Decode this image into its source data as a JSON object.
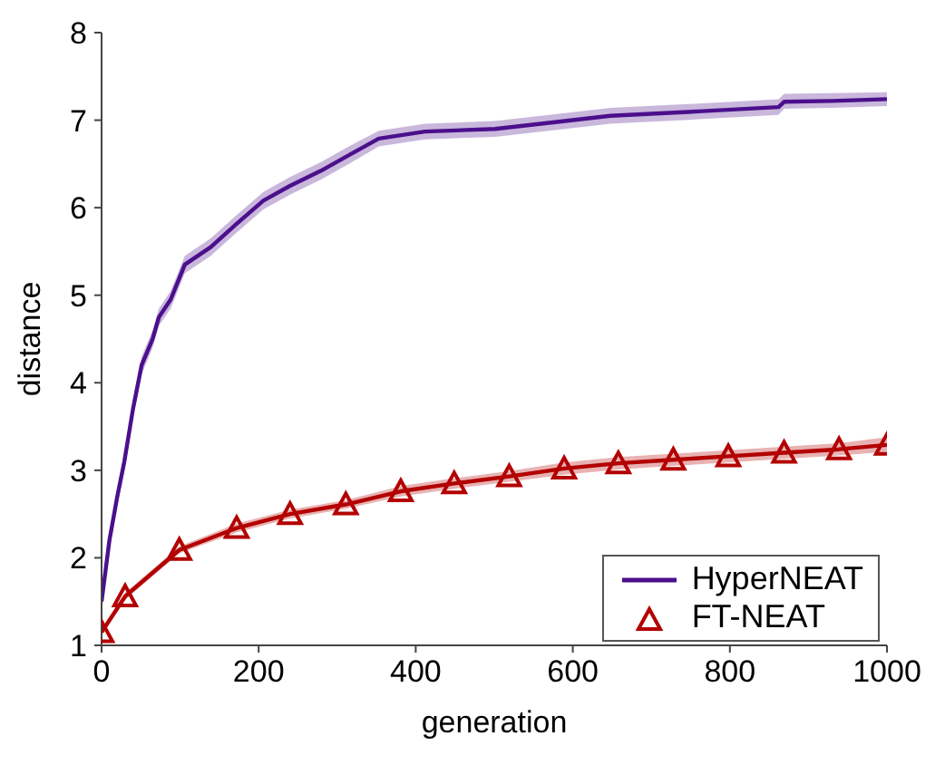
{
  "chart_data": {
    "type": "line",
    "xlabel": "generation",
    "ylabel": "distance",
    "xlim": [
      0,
      1000
    ],
    "xticks": [
      0,
      200,
      400,
      600,
      800,
      1000
    ],
    "ylim": [
      1,
      8
    ],
    "yticks": [
      1,
      2,
      3,
      4,
      5,
      6,
      7,
      8
    ],
    "legend": "bottom right",
    "series": [
      {
        "name": "HyperNEAT",
        "color": "#4b0f8c",
        "marker": "none",
        "x": [
          0,
          10,
          20,
          29,
          40,
          51,
          65,
          73,
          88,
          106,
          139,
          170,
          206,
          240,
          279,
          315,
          353,
          412,
          501,
          580,
          648,
          760,
          862,
          869,
          930,
          1000
        ],
        "values": [
          1.5,
          2.2,
          2.7,
          3.1,
          3.7,
          4.2,
          4.5,
          4.75,
          4.95,
          5.35,
          5.55,
          5.8,
          6.08,
          6.25,
          6.42,
          6.6,
          6.79,
          6.87,
          6.9,
          6.98,
          7.05,
          7.1,
          7.15,
          7.21,
          7.22,
          7.24
        ],
        "lower": [
          1.45,
          2.1,
          2.6,
          3.0,
          3.6,
          4.1,
          4.4,
          4.65,
          4.85,
          5.25,
          5.45,
          5.7,
          5.98,
          6.15,
          6.32,
          6.5,
          6.7,
          6.78,
          6.81,
          6.89,
          6.96,
          7.01,
          7.06,
          7.13,
          7.14,
          7.16
        ],
        "upper": [
          1.55,
          2.3,
          2.8,
          3.2,
          3.8,
          4.3,
          4.6,
          4.85,
          5.05,
          5.45,
          5.65,
          5.9,
          6.18,
          6.35,
          6.52,
          6.7,
          6.88,
          6.96,
          6.99,
          7.07,
          7.14,
          7.19,
          7.24,
          7.3,
          7.31,
          7.32
        ]
      },
      {
        "name": "FT-NEAT",
        "color": "#b30000",
        "marker": "triangle",
        "x": [
          0,
          30,
          99,
          172,
          240,
          311,
          381,
          449,
          519,
          589,
          658,
          728,
          798,
          869,
          939,
          1000
        ],
        "values": [
          1.15,
          1.56,
          2.09,
          2.34,
          2.5,
          2.61,
          2.76,
          2.85,
          2.93,
          3.02,
          3.08,
          3.12,
          3.16,
          3.2,
          3.24,
          3.29
        ],
        "lower": [
          1.13,
          1.52,
          2.05,
          2.29,
          2.45,
          2.56,
          2.7,
          2.79,
          2.87,
          2.95,
          3.01,
          3.05,
          3.09,
          3.13,
          3.17,
          3.21
        ],
        "upper": [
          1.17,
          1.6,
          2.13,
          2.39,
          2.55,
          2.66,
          2.82,
          2.91,
          2.99,
          3.09,
          3.15,
          3.19,
          3.23,
          3.27,
          3.31,
          3.38
        ]
      }
    ]
  }
}
